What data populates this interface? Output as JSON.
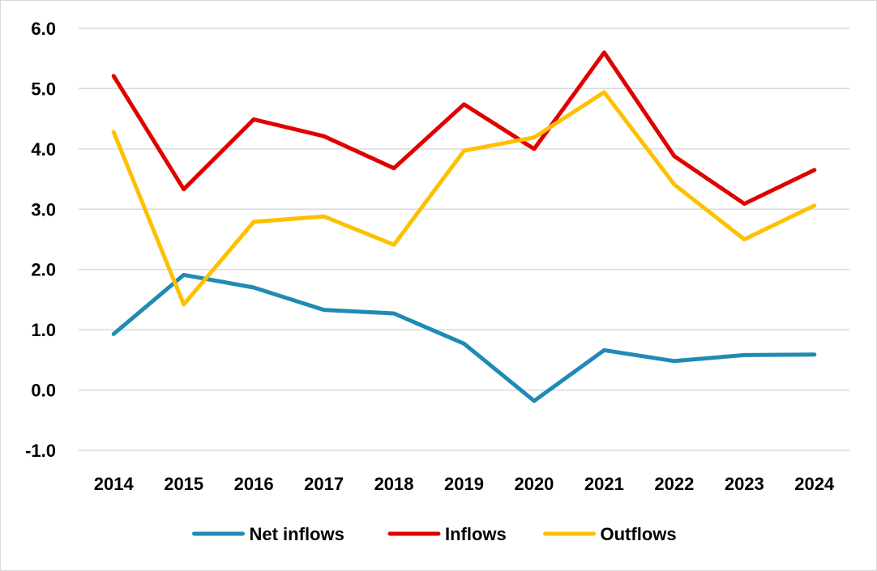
{
  "chart_data": {
    "type": "line",
    "title": "",
    "xlabel": "",
    "ylabel": "",
    "categories": [
      "2014",
      "2015",
      "2016",
      "2017",
      "2018",
      "2019",
      "2020",
      "2021",
      "2022",
      "2023",
      "2024"
    ],
    "ylim": [
      -1.0,
      6.0
    ],
    "yticks": [
      "-1.0",
      "0.0",
      "1.0",
      "2.0",
      "3.0",
      "4.0",
      "5.0",
      "6.0"
    ],
    "grid": "horizontal",
    "legend_position": "bottom",
    "series": [
      {
        "name": "Net inflows",
        "color": "#1f8bb5",
        "values": [
          0.93,
          1.91,
          1.7,
          1.33,
          1.27,
          0.77,
          -0.18,
          0.66,
          0.48,
          0.58,
          0.59
        ]
      },
      {
        "name": "Inflows",
        "color": "#e00000",
        "values": [
          5.21,
          3.33,
          4.49,
          4.21,
          3.68,
          4.74,
          4.0,
          5.6,
          3.88,
          3.09,
          3.65
        ]
      },
      {
        "name": "Outflows",
        "color": "#ffc000",
        "values": [
          4.28,
          1.42,
          2.79,
          2.88,
          2.41,
          3.97,
          4.19,
          4.94,
          3.41,
          2.5,
          3.06
        ]
      }
    ]
  }
}
